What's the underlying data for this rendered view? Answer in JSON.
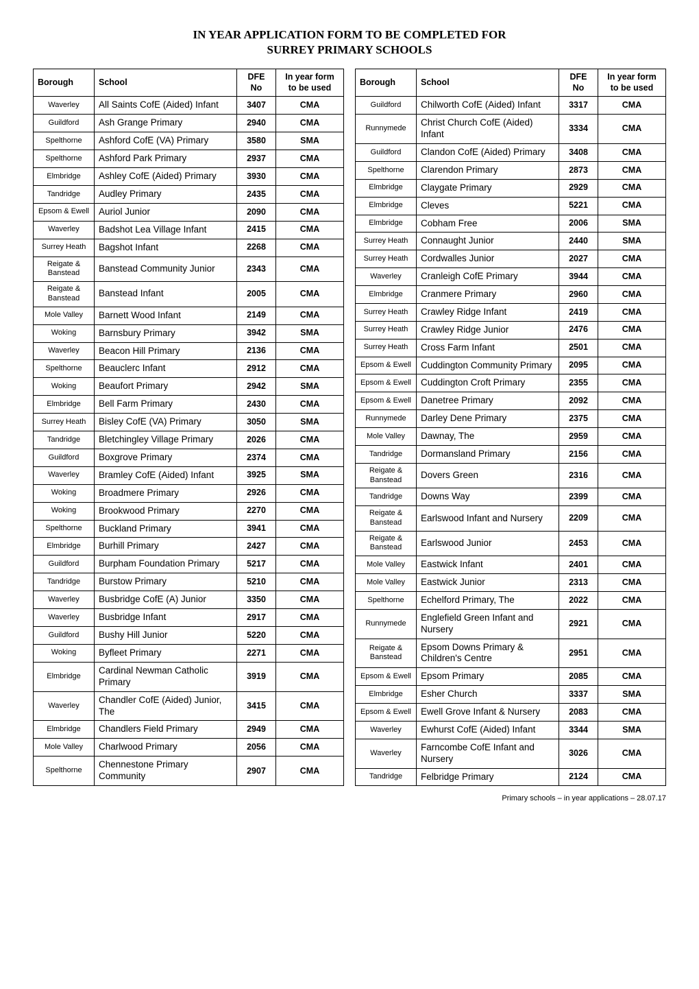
{
  "title_line1": "IN YEAR APPLICATION FORM TO BE COMPLETED FOR",
  "title_line2": "SURREY PRIMARY SCHOOLS",
  "footer": "Primary schools – in year applications – 28.07.17",
  "columns": [
    "Borough",
    "School",
    "DFE No",
    "In year form to be used"
  ],
  "left_rows": [
    [
      "Waverley",
      "All Saints CofE (Aided) Infant",
      "3407",
      "CMA"
    ],
    [
      "Guildford",
      "Ash Grange Primary",
      "2940",
      "CMA"
    ],
    [
      "Spelthorne",
      "Ashford CofE (VA) Primary",
      "3580",
      "SMA"
    ],
    [
      "Spelthorne",
      "Ashford Park Primary",
      "2937",
      "CMA"
    ],
    [
      "Elmbridge",
      "Ashley CofE (Aided) Primary",
      "3930",
      "CMA"
    ],
    [
      "Tandridge",
      "Audley Primary",
      "2435",
      "CMA"
    ],
    [
      "Epsom & Ewell",
      "Auriol Junior",
      "2090",
      "CMA"
    ],
    [
      "Waverley",
      "Badshot Lea Village Infant",
      "2415",
      "CMA"
    ],
    [
      "Surrey Heath",
      "Bagshot Infant",
      "2268",
      "CMA"
    ],
    [
      "Reigate & Banstead",
      "Banstead Community Junior",
      "2343",
      "CMA"
    ],
    [
      "Reigate & Banstead",
      "Banstead Infant",
      "2005",
      "CMA"
    ],
    [
      "Mole Valley",
      "Barnett Wood Infant",
      "2149",
      "CMA"
    ],
    [
      "Woking",
      "Barnsbury Primary",
      "3942",
      "SMA"
    ],
    [
      "Waverley",
      "Beacon Hill Primary",
      "2136",
      "CMA"
    ],
    [
      "Spelthorne",
      "Beauclerc Infant",
      "2912",
      "CMA"
    ],
    [
      "Woking",
      "Beaufort Primary",
      "2942",
      "SMA"
    ],
    [
      "Elmbridge",
      "Bell Farm Primary",
      "2430",
      "CMA"
    ],
    [
      "Surrey Heath",
      "Bisley CofE (VA) Primary",
      "3050",
      "SMA"
    ],
    [
      "Tandridge",
      "Bletchingley Village Primary",
      "2026",
      "CMA"
    ],
    [
      "Guildford",
      "Boxgrove Primary",
      "2374",
      "CMA"
    ],
    [
      "Waverley",
      "Bramley CofE (Aided) Infant",
      "3925",
      "SMA"
    ],
    [
      "Woking",
      "Broadmere Primary",
      "2926",
      "CMA"
    ],
    [
      "Woking",
      "Brookwood Primary",
      "2270",
      "CMA"
    ],
    [
      "Spelthorne",
      "Buckland Primary",
      "3941",
      "CMA"
    ],
    [
      "Elmbridge",
      "Burhill Primary",
      "2427",
      "CMA"
    ],
    [
      "Guildford",
      "Burpham Foundation Primary",
      "5217",
      "CMA"
    ],
    [
      "Tandridge",
      "Burstow Primary",
      "5210",
      "CMA"
    ],
    [
      "Waverley",
      "Busbridge CofE (A) Junior",
      "3350",
      "CMA"
    ],
    [
      "Waverley",
      "Busbridge Infant",
      "2917",
      "CMA"
    ],
    [
      "Guildford",
      "Bushy Hill Junior",
      "5220",
      "CMA"
    ],
    [
      "Woking",
      "Byfleet Primary",
      "2271",
      "CMA"
    ],
    [
      "Elmbridge",
      "Cardinal Newman Catholic Primary",
      "3919",
      "CMA"
    ],
    [
      "Waverley",
      "Chandler CofE (Aided) Junior, The",
      "3415",
      "CMA"
    ],
    [
      "Elmbridge",
      "Chandlers Field Primary",
      "2949",
      "CMA"
    ],
    [
      "Mole Valley",
      "Charlwood Primary",
      "2056",
      "CMA"
    ],
    [
      "Spelthorne",
      "Chennestone Primary Community",
      "2907",
      "CMA"
    ]
  ],
  "right_rows": [
    [
      "Guildford",
      "Chilworth CofE (Aided) Infant",
      "3317",
      "CMA"
    ],
    [
      "Runnymede",
      "Christ Church CofE (Aided) Infant",
      "3334",
      "CMA"
    ],
    [
      "Guildford",
      "Clandon CofE (Aided) Primary",
      "3408",
      "CMA"
    ],
    [
      "Spelthorne",
      "Clarendon Primary",
      "2873",
      "CMA"
    ],
    [
      "Elmbridge",
      "Claygate Primary",
      "2929",
      "CMA"
    ],
    [
      "Elmbridge",
      "Cleves",
      "5221",
      "CMA"
    ],
    [
      "Elmbridge",
      "Cobham Free",
      "2006",
      "SMA"
    ],
    [
      "Surrey Heath",
      "Connaught Junior",
      "2440",
      "SMA"
    ],
    [
      "Surrey Heath",
      "Cordwalles Junior",
      "2027",
      "CMA"
    ],
    [
      "Waverley",
      "Cranleigh CofE Primary",
      "3944",
      "CMA"
    ],
    [
      "Elmbridge",
      "Cranmere Primary",
      "2960",
      "CMA"
    ],
    [
      "Surrey Heath",
      "Crawley Ridge Infant",
      "2419",
      "CMA"
    ],
    [
      "Surrey Heath",
      "Crawley Ridge Junior",
      "2476",
      "CMA"
    ],
    [
      "Surrey Heath",
      "Cross Farm Infant",
      "2501",
      "CMA"
    ],
    [
      "Epsom & Ewell",
      "Cuddington Community Primary",
      "2095",
      "CMA"
    ],
    [
      "Epsom & Ewell",
      "Cuddington Croft Primary",
      "2355",
      "CMA"
    ],
    [
      "Epsom & Ewell",
      "Danetree Primary",
      "2092",
      "CMA"
    ],
    [
      "Runnymede",
      "Darley Dene Primary",
      "2375",
      "CMA"
    ],
    [
      "Mole Valley",
      "Dawnay, The",
      "2959",
      "CMA"
    ],
    [
      "Tandridge",
      "Dormansland Primary",
      "2156",
      "CMA"
    ],
    [
      "Reigate & Banstead",
      "Dovers Green",
      "2316",
      "CMA"
    ],
    [
      "Tandridge",
      "Downs Way",
      "2399",
      "CMA"
    ],
    [
      "Reigate & Banstead",
      "Earlswood Infant and Nursery",
      "2209",
      "CMA"
    ],
    [
      "Reigate & Banstead",
      "Earlswood Junior",
      "2453",
      "CMA"
    ],
    [
      "Mole Valley",
      "Eastwick Infant",
      "2401",
      "CMA"
    ],
    [
      "Mole Valley",
      "Eastwick Junior",
      "2313",
      "CMA"
    ],
    [
      "Spelthorne",
      "Echelford Primary, The",
      "2022",
      "CMA"
    ],
    [
      "Runnymede",
      "Englefield Green Infant and Nursery",
      "2921",
      "CMA"
    ],
    [
      "Reigate & Banstead",
      "Epsom Downs Primary & Children's Centre",
      "2951",
      "CMA"
    ],
    [
      "Epsom & Ewell",
      "Epsom Primary",
      "2085",
      "CMA"
    ],
    [
      "Elmbridge",
      "Esher Church",
      "3337",
      "SMA"
    ],
    [
      "Epsom & Ewell",
      "Ewell Grove Infant & Nursery",
      "2083",
      "CMA"
    ],
    [
      "Waverley",
      "Ewhurst CofE (Aided) Infant",
      "3344",
      "SMA"
    ],
    [
      "Waverley",
      "Farncombe CofE Infant and Nursery",
      "3026",
      "CMA"
    ],
    [
      "Tandridge",
      "Felbridge Primary",
      "2124",
      "CMA"
    ]
  ]
}
